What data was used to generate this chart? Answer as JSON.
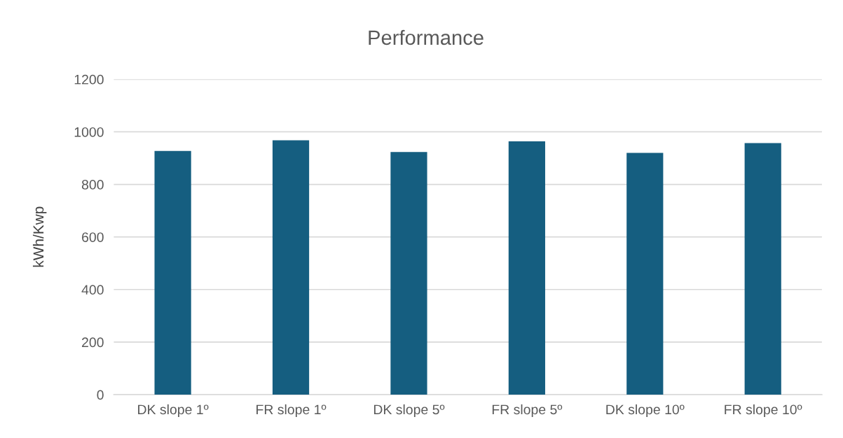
{
  "chart_data": {
    "type": "bar",
    "title": "Performance",
    "ylabel": "kWh/Kwp",
    "categories": [
      "DK slope 1º",
      "FR slope 1º",
      "DK slope 5º",
      "FR slope 5º",
      "DK slope 10º",
      "FR slope 10º"
    ],
    "values": [
      927,
      968,
      923,
      964,
      920,
      957
    ],
    "color": "#155e80",
    "ylim": [
      0,
      1200
    ],
    "yticks": [
      0,
      200,
      400,
      600,
      800,
      1000,
      1200
    ],
    "grid": "y",
    "legend": false
  }
}
